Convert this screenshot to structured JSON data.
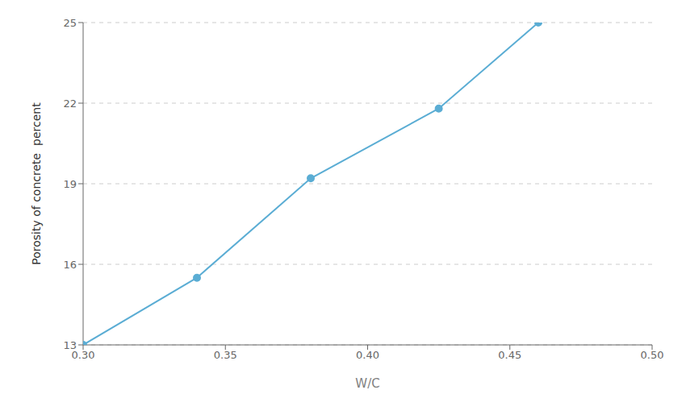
{
  "chart_data": {
    "type": "line",
    "x": [
      0.3,
      0.34,
      0.38,
      0.425,
      0.46
    ],
    "values": [
      13.0,
      15.5,
      19.2,
      21.8,
      25.0
    ],
    "color": "#5BADD4",
    "marker": "circle",
    "xlabel": "W/C",
    "ylabel": "Porosity of concrete  percent",
    "xlim": [
      0.3,
      0.5
    ],
    "ylim": [
      13,
      25
    ],
    "xticks": [
      {
        "value": 0.3,
        "label": "0.30"
      },
      0.35,
      {
        "value": 0.4,
        "label": "0.40"
      },
      0.45,
      {
        "value": 0.5,
        "label": "0.50"
      }
    ],
    "yticks": [
      13,
      16,
      19,
      22,
      25
    ],
    "grid": true
  }
}
